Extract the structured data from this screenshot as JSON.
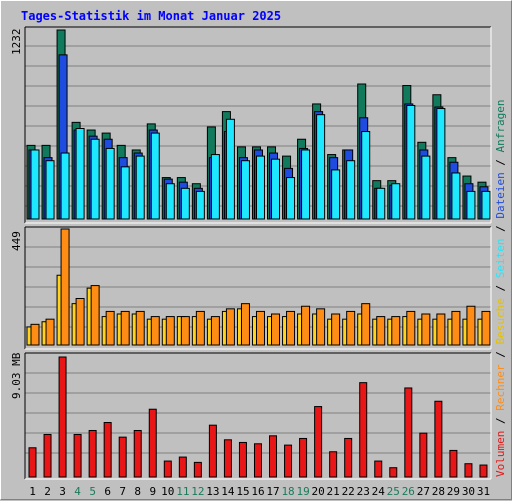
{
  "title": "Tages-Statistik im Monat Januar 2025",
  "colors": {
    "anfragen": "#127a5c",
    "dateien": "#1e4be0",
    "seiten": "#1ee8ff",
    "besuche": "#ffd21e",
    "rechner": "#ff8c14",
    "volumen": "#e81616",
    "weekend_label": "#1a7a5a",
    "weekday_label": "#000000"
  },
  "right_legend": [
    {
      "text": "Volumen",
      "color": "#e81616"
    },
    {
      "text": " / ",
      "color": "#000000"
    },
    {
      "text": "Rechner",
      "color": "#ff8c14"
    },
    {
      "text": " / ",
      "color": "#000000"
    },
    {
      "text": "Besuche",
      "color": "#e6c000"
    },
    {
      "text": " / ",
      "color": "#000000"
    },
    {
      "text": "Seiten",
      "color": "#1ee8ff"
    },
    {
      "text": " / ",
      "color": "#000000"
    },
    {
      "text": "Dateien",
      "color": "#1e4be0"
    },
    {
      "text": " / ",
      "color": "#000000"
    },
    {
      "text": "Anfragen",
      "color": "#127a5c"
    }
  ],
  "chart_data": [
    {
      "type": "bar",
      "panel": "top",
      "ymax_label": "1232",
      "ylim": [
        0,
        1232
      ],
      "categories": [
        "1",
        "2",
        "3",
        "4",
        "5",
        "6",
        "7",
        "8",
        "9",
        "10",
        "11",
        "12",
        "13",
        "14",
        "15",
        "16",
        "17",
        "18",
        "19",
        "20",
        "21",
        "22",
        "23",
        "24",
        "25",
        "26",
        "27",
        "28",
        "29",
        "30",
        "31"
      ],
      "weekend_days": [
        4,
        5,
        11,
        12,
        18,
        19,
        25,
        26
      ],
      "series": [
        {
          "name": "Anfragen",
          "values": [
            480,
            480,
            1232,
            630,
            580,
            560,
            480,
            450,
            620,
            270,
            270,
            230,
            600,
            700,
            470,
            470,
            470,
            410,
            520,
            750,
            420,
            450,
            880,
            250,
            250,
            870,
            500,
            810,
            400,
            280,
            240
          ]
        },
        {
          "name": "Dateien",
          "values": [
            450,
            400,
            1070,
            580,
            540,
            520,
            400,
            430,
            580,
            260,
            240,
            200,
            400,
            570,
            400,
            450,
            430,
            330,
            460,
            700,
            400,
            450,
            660,
            200,
            220,
            750,
            450,
            730,
            370,
            230,
            210
          ]
        },
        {
          "name": "Seiten",
          "values": [
            450,
            380,
            430,
            590,
            520,
            460,
            340,
            410,
            560,
            230,
            200,
            180,
            420,
            650,
            380,
            410,
            390,
            270,
            450,
            680,
            320,
            380,
            570,
            200,
            230,
            740,
            410,
            720,
            300,
            180,
            180
          ]
        }
      ]
    },
    {
      "type": "bar",
      "panel": "middle",
      "ymax_label": "449",
      "ylim": [
        0,
        449
      ],
      "categories": [
        "1",
        "2",
        "3",
        "4",
        "5",
        "6",
        "7",
        "8",
        "9",
        "10",
        "11",
        "12",
        "13",
        "14",
        "15",
        "16",
        "17",
        "18",
        "19",
        "20",
        "21",
        "22",
        "23",
        "24",
        "25",
        "26",
        "27",
        "28",
        "29",
        "30",
        "31"
      ],
      "series": [
        {
          "name": "Besuche",
          "values": [
            70,
            90,
            270,
            160,
            220,
            110,
            120,
            120,
            100,
            100,
            110,
            110,
            100,
            130,
            140,
            110,
            110,
            110,
            120,
            120,
            100,
            100,
            120,
            100,
            100,
            110,
            100,
            100,
            100,
            100,
            100
          ]
        },
        {
          "name": "Rechner",
          "values": [
            80,
            100,
            449,
            180,
            230,
            130,
            130,
            130,
            110,
            110,
            110,
            130,
            110,
            140,
            160,
            130,
            120,
            130,
            150,
            140,
            120,
            130,
            160,
            110,
            110,
            130,
            120,
            120,
            130,
            150,
            130
          ]
        }
      ]
    },
    {
      "type": "bar",
      "panel": "bottom",
      "ymax_label": "9.03 MB",
      "ylim": [
        0,
        9.03
      ],
      "y_unit": "MB",
      "categories": [
        "1",
        "2",
        "3",
        "4",
        "5",
        "6",
        "7",
        "8",
        "9",
        "10",
        "11",
        "12",
        "13",
        "14",
        "15",
        "16",
        "17",
        "18",
        "19",
        "20",
        "21",
        "22",
        "23",
        "24",
        "25",
        "26",
        "27",
        "28",
        "29",
        "30",
        "31"
      ],
      "series": [
        {
          "name": "Volumen",
          "values": [
            2.2,
            3.2,
            9.03,
            3.2,
            3.5,
            4.1,
            3.0,
            3.5,
            5.1,
            1.2,
            1.5,
            1.1,
            3.9,
            2.8,
            2.6,
            2.5,
            3.1,
            2.4,
            2.9,
            5.3,
            1.9,
            2.9,
            7.1,
            1.2,
            0.7,
            6.7,
            3.3,
            5.7,
            2.0,
            1.0,
            0.9
          ]
        }
      ]
    }
  ]
}
